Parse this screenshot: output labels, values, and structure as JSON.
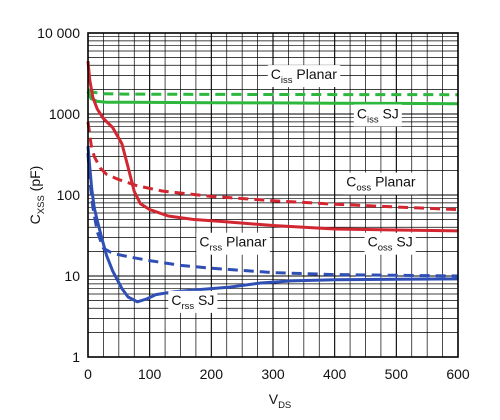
{
  "chart_data": {
    "type": "line",
    "title": "",
    "xlabel": {
      "main": "V",
      "sub": "DS"
    },
    "ylabel": {
      "main": "C",
      "sub": "XSS",
      "unit": " (pF)"
    },
    "x_range": [
      0,
      600
    ],
    "y_range": [
      1,
      10000
    ],
    "y_scale": "log",
    "grid": true,
    "x_ticks": [
      {
        "value": 0,
        "label": "0"
      },
      {
        "value": 100,
        "label": "100"
      },
      {
        "value": 200,
        "label": "200"
      },
      {
        "value": 300,
        "label": "300"
      },
      {
        "value": 400,
        "label": "400"
      },
      {
        "value": 500,
        "label": "500"
      },
      {
        "value": 600,
        "label": "600"
      }
    ],
    "y_ticks": [
      {
        "value": 10000,
        "label": "10 000"
      },
      {
        "value": 1000,
        "label": "1000"
      },
      {
        "value": 100,
        "label": "100"
      },
      {
        "value": 10,
        "label": "10"
      },
      {
        "value": 1,
        "label": "1"
      }
    ],
    "series": [
      {
        "name": "Ciss Planar",
        "label": {
          "main": "C",
          "sub": "iss",
          "rest": " Planar"
        },
        "color": "#2db83d",
        "dash": true,
        "points": [
          [
            0,
            2000
          ],
          [
            10,
            1850
          ],
          [
            25,
            1780
          ],
          [
            60,
            1760
          ],
          [
            150,
            1750
          ],
          [
            300,
            1740
          ],
          [
            450,
            1735
          ],
          [
            600,
            1730
          ]
        ]
      },
      {
        "name": "Ciss SJ",
        "label": {
          "main": "C",
          "sub": "iss",
          "rest": " SJ"
        },
        "color": "#2db83d",
        "dash": false,
        "points": [
          [
            0,
            1900
          ],
          [
            5,
            1550
          ],
          [
            15,
            1430
          ],
          [
            30,
            1400
          ],
          [
            100,
            1390
          ],
          [
            200,
            1380
          ],
          [
            300,
            1370
          ],
          [
            400,
            1360
          ],
          [
            500,
            1350
          ],
          [
            600,
            1340
          ]
        ]
      },
      {
        "name": "Coss Planar",
        "label": {
          "main": "C",
          "sub": "oss",
          "rest": " Planar"
        },
        "color": "#d22630",
        "dash": true,
        "points": [
          [
            0,
            800
          ],
          [
            5,
            420
          ],
          [
            10,
            300
          ],
          [
            20,
            215
          ],
          [
            30,
            180
          ],
          [
            50,
            155
          ],
          [
            80,
            130
          ],
          [
            120,
            112
          ],
          [
            200,
            96
          ],
          [
            300,
            85
          ],
          [
            400,
            77
          ],
          [
            500,
            71
          ],
          [
            600,
            66
          ]
        ]
      },
      {
        "name": "Coss SJ",
        "label": {
          "main": "C",
          "sub": "oss",
          "rest": " SJ"
        },
        "color": "#d22630",
        "dash": false,
        "points": [
          [
            0,
            4500
          ],
          [
            3,
            2600
          ],
          [
            8,
            1600
          ],
          [
            15,
            1150
          ],
          [
            25,
            880
          ],
          [
            40,
            680
          ],
          [
            55,
            430
          ],
          [
            65,
            220
          ],
          [
            75,
            110
          ],
          [
            85,
            78
          ],
          [
            100,
            66
          ],
          [
            130,
            55
          ],
          [
            170,
            50
          ],
          [
            220,
            47
          ],
          [
            300,
            42
          ],
          [
            400,
            38
          ],
          [
            500,
            37
          ],
          [
            600,
            36
          ]
        ]
      },
      {
        "name": "Crss Planar",
        "label": {
          "main": "C",
          "sub": "rss",
          "rest": " Planar"
        },
        "color": "#2f4fb5",
        "dash": true,
        "points": [
          [
            0,
            330
          ],
          [
            3,
            150
          ],
          [
            8,
            70
          ],
          [
            15,
            35
          ],
          [
            25,
            22
          ],
          [
            40,
            19
          ],
          [
            70,
            17
          ],
          [
            100,
            15.5
          ],
          [
            150,
            13.5
          ],
          [
            200,
            12.5
          ],
          [
            300,
            11
          ],
          [
            400,
            10.4
          ],
          [
            500,
            10.2
          ],
          [
            600,
            10
          ]
        ]
      },
      {
        "name": "Crss SJ",
        "label": {
          "main": "C",
          "sub": "rss",
          "rest": " SJ"
        },
        "color": "#2f4fb5",
        "dash": false,
        "points": [
          [
            0,
            400
          ],
          [
            3,
            220
          ],
          [
            6,
            120
          ],
          [
            10,
            70
          ],
          [
            15,
            48
          ],
          [
            22,
            30
          ],
          [
            30,
            18
          ],
          [
            40,
            11.5
          ],
          [
            55,
            7
          ],
          [
            65,
            5.5
          ],
          [
            80,
            4.8
          ],
          [
            95,
            5.2
          ],
          [
            110,
            5.9
          ],
          [
            140,
            6.4
          ],
          [
            180,
            6.8
          ],
          [
            230,
            7.3
          ],
          [
            280,
            8.2
          ],
          [
            330,
            8.7
          ],
          [
            400,
            9
          ],
          [
            500,
            9.1
          ],
          [
            600,
            9.2
          ]
        ]
      }
    ]
  }
}
